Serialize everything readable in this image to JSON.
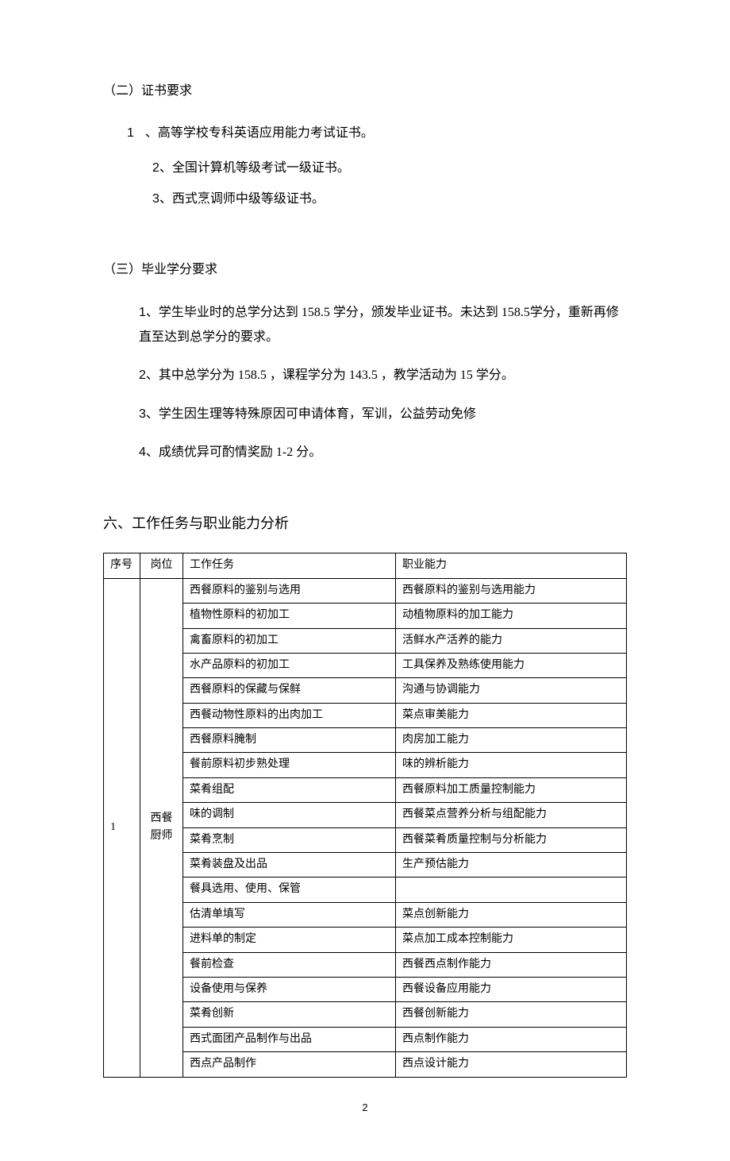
{
  "section2": {
    "heading": "（二）证书要求",
    "items": [
      {
        "num": "1",
        "sep": " 、",
        "text": "高等学校专科英语应用能力考试证书。"
      },
      {
        "num": "2",
        "sep": "、",
        "text": "全国计算机等级考试一级证书。"
      },
      {
        "num": "3",
        "sep": "、",
        "text": "西式烹调师中级等级证书。"
      }
    ]
  },
  "section3": {
    "heading": "（三）毕业学分要求",
    "items": [
      {
        "num": "1",
        "text": "、学生毕业时的总学分达到 158.5 学分，颁发毕业证书。未达到 158.5学分，重新再修直至达到总学分的要求。"
      },
      {
        "num": "2",
        "text": "、其中总学分为  158.5 ，课程学分为  143.5 ，教学活动为  15 学分。"
      },
      {
        "num": "3",
        "text": "、学生因生理等特殊原因可申请体育，军训，公益劳动免修"
      },
      {
        "num": "4",
        "text": "、成绩优异可酌情奖励   1-2 分。"
      }
    ]
  },
  "section6": {
    "heading": "六、工作任务与职业能力分析",
    "table": {
      "headers": [
        "序号",
        "岗位",
        "工作任务",
        "职业能力"
      ],
      "seq": "1",
      "post_l1": "西餐",
      "post_l2": "厨师",
      "rows": [
        {
          "task": "西餐原料的鉴别与选用",
          "ability": "西餐原料的鉴别与选用能力"
        },
        {
          "task": "植物性原料的初加工",
          "ability": "动植物原料的加工能力"
        },
        {
          "task": "禽畜原料的初加工",
          "ability": "活鲜水产活养的能力"
        },
        {
          "task": "水产品原料的初加工",
          "ability": "工具保养及熟练使用能力"
        },
        {
          "task": "西餐原料的保藏与保鲜",
          "ability": "沟通与协调能力"
        },
        {
          "task": "西餐动物性原料的出肉加工",
          "ability": "菜点审美能力"
        },
        {
          "task": "西餐原料腌制",
          "ability": "肉房加工能力"
        },
        {
          "task": "餐前原料初步熟处理",
          "ability": "味的辨析能力"
        },
        {
          "task": "菜肴组配",
          "ability": "西餐原料加工质量控制能力"
        },
        {
          "task": "味的调制",
          "ability": "西餐菜点营养分析与组配能力"
        },
        {
          "task": "菜肴烹制",
          "ability": "西餐菜肴质量控制与分析能力"
        },
        {
          "task": "菜肴装盘及出品",
          "ability": "生产预估能力"
        },
        {
          "task": "餐具选用、使用、保管",
          "ability": ""
        },
        {
          "task": "估清单填写",
          "ability": "菜点创新能力"
        },
        {
          "task": "进料单的制定",
          "ability": "菜点加工成本控制能力"
        },
        {
          "task": "餐前检查",
          "ability": "西餐西点制作能力"
        },
        {
          "task": "设备使用与保养",
          "ability": "西餐设备应用能力"
        },
        {
          "task": "菜肴创新",
          "ability": "西餐创新能力"
        },
        {
          "task": "西式面团产品制作与出品",
          "ability": "西点制作能力"
        },
        {
          "task": "西点产品制作",
          "ability": "西点设计能力"
        }
      ]
    }
  },
  "page_number": "2",
  "style": {
    "font_body": 16,
    "font_heading_main": 18,
    "font_table": 14,
    "border_color": "#000000",
    "text_color": "#000000",
    "bg_color": "#ffffff"
  }
}
